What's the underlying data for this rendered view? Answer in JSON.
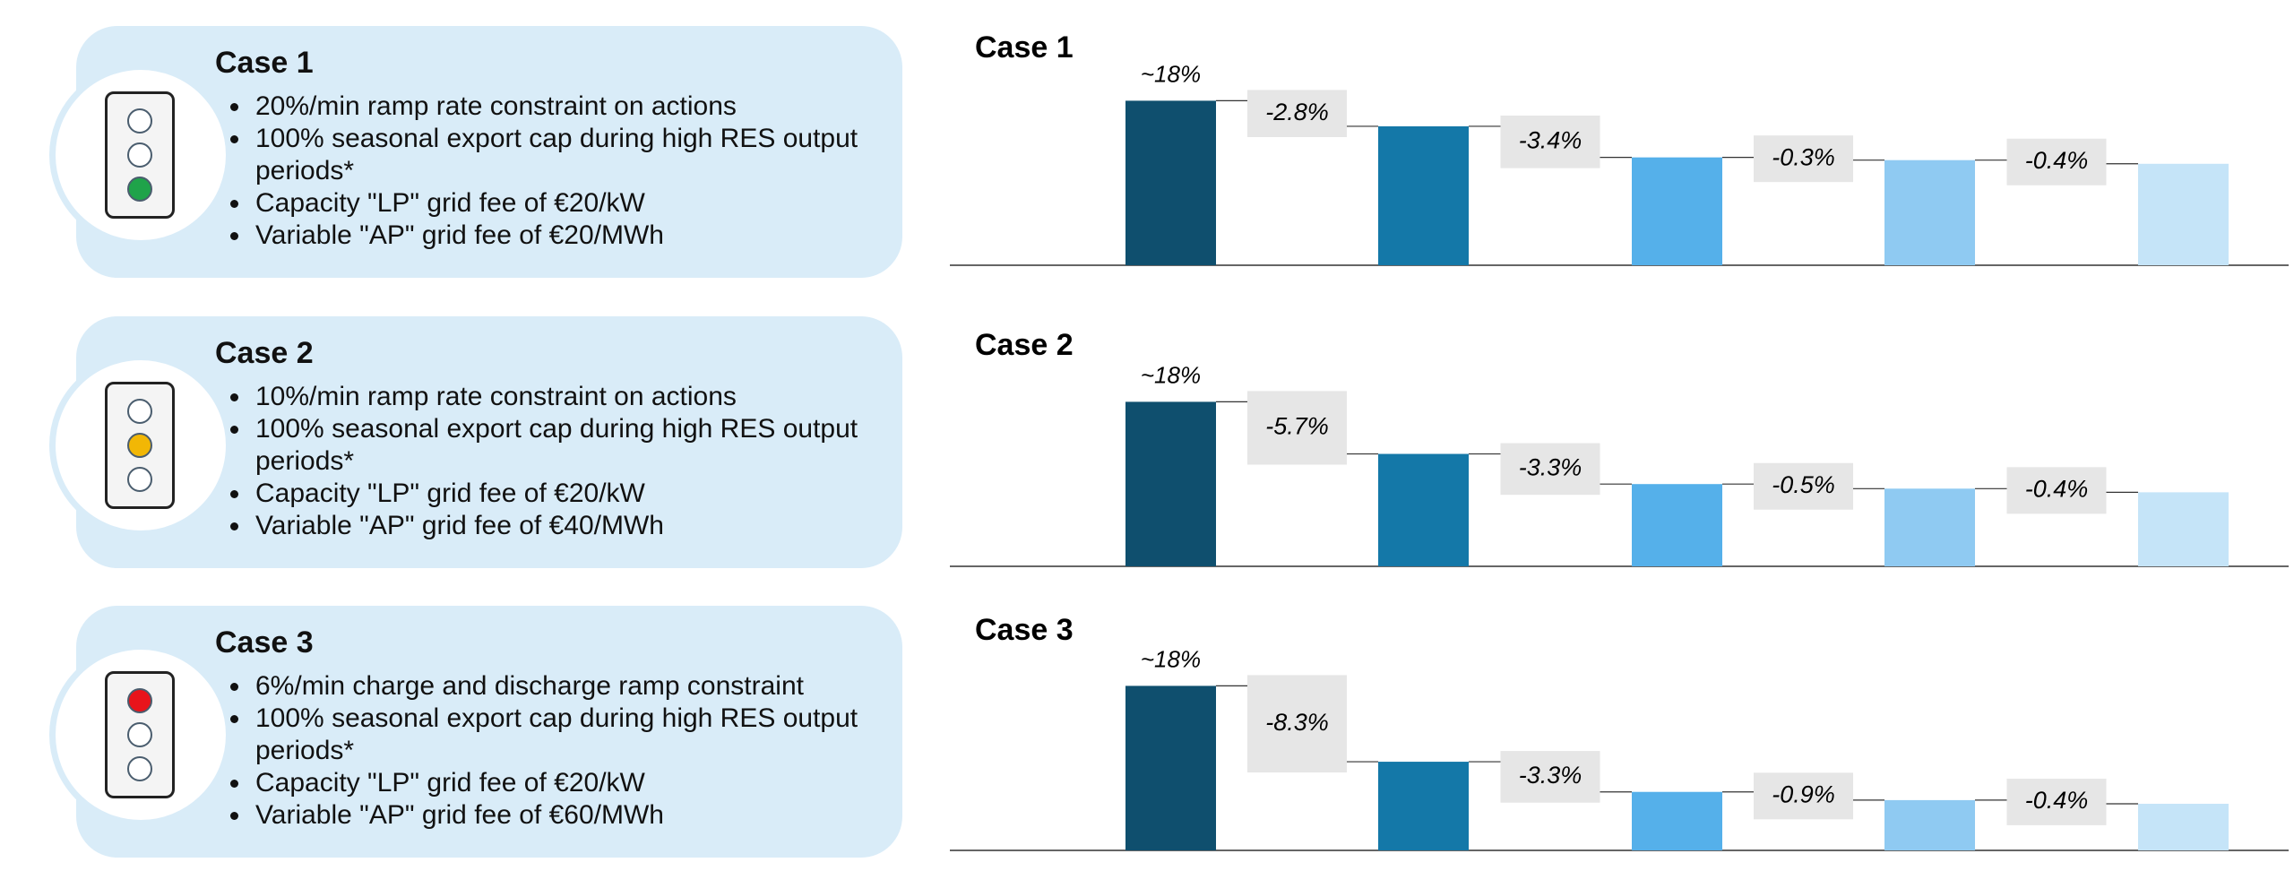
{
  "cases": [
    {
      "title": "Case 1",
      "bullets": [
        "20%/min ramp rate constraint on actions",
        "100% seasonal export cap during high RES output periods*",
        "Capacity \"LP\" grid fee of €20/kW",
        "Variable \"AP\" grid fee of €20/MWh"
      ],
      "signal_position": "bottom",
      "signal_color": "#1fa34a"
    },
    {
      "title": "Case 2",
      "bullets": [
        "10%/min ramp rate constraint on actions",
        "100% seasonal export cap during high RES output periods*",
        "Capacity \"LP\" grid fee of €20/kW",
        "Variable \"AP\" grid fee of €40/MWh"
      ],
      "signal_position": "middle",
      "signal_color": "#f2b705"
    },
    {
      "title": "Case 3",
      "bullets": [
        "6%/min charge and discharge ramp constraint",
        "100% seasonal export cap during high RES output periods*",
        "Capacity \"LP\" grid fee of €20/kW",
        "Variable \"AP\" grid fee of €60/MWh"
      ],
      "signal_position": "top",
      "signal_color": "#e8141b"
    }
  ],
  "chart_data": [
    {
      "type": "waterfall",
      "title": "Case 1",
      "values": [
        18,
        -2.8,
        -3.4,
        -0.3,
        -0.4
      ],
      "value_labels": [
        "~18%",
        "-2.8%",
        "-3.4%",
        "-0.3%",
        "-0.4%"
      ],
      "colors": [
        "#0f4f6e",
        "#1478a8",
        "#55b0ea",
        "#8fcaf2",
        "#c5e4f8"
      ],
      "box_color": "#e6e6e6"
    },
    {
      "type": "waterfall",
      "title": "Case 2",
      "values": [
        18,
        -5.7,
        -3.3,
        -0.5,
        -0.4
      ],
      "value_labels": [
        "~18%",
        "-5.7%",
        "-3.3%",
        "-0.5%",
        "-0.4%"
      ],
      "colors": [
        "#0f4f6e",
        "#1478a8",
        "#55b0ea",
        "#8fcaf2",
        "#c5e4f8"
      ],
      "box_color": "#e6e6e6"
    },
    {
      "type": "waterfall",
      "title": "Case 3",
      "values": [
        18,
        -8.3,
        -3.3,
        -0.9,
        -0.4
      ],
      "value_labels": [
        "~18%",
        "-8.3%",
        "-3.3%",
        "-0.9%",
        "-0.4%"
      ],
      "colors": [
        "#0f4f6e",
        "#1478a8",
        "#55b0ea",
        "#8fcaf2",
        "#c5e4f8"
      ],
      "box_color": "#e6e6e6"
    }
  ]
}
